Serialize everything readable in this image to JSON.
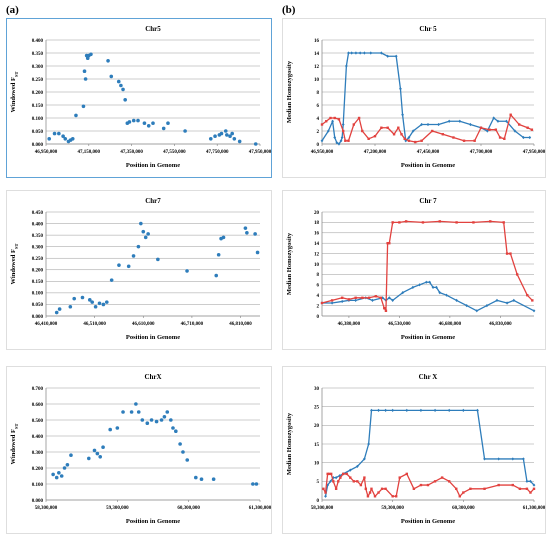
{
  "panels": {
    "left": "(a)",
    "right": "(b)"
  },
  "chart_data": [
    {
      "id": "a1",
      "type": "scatter",
      "title": "Chr5",
      "xlabel": "Position in Genome",
      "ylabel": "Windowed F",
      "ylabel_sub": "ST",
      "xlim": [
        46950000,
        47950000
      ],
      "xticks": [
        46950000,
        47150000,
        47350000,
        47550000,
        47750000,
        47950000
      ],
      "xtick_labels": [
        "46,950,000",
        "47,150,000",
        "47,350,000",
        "47,550,000",
        "47,750,000",
        "47,950,000"
      ],
      "ylim": [
        0,
        0.4
      ],
      "yticks": [
        0,
        0.05,
        0.1,
        0.15,
        0.2,
        0.25,
        0.3,
        0.35,
        0.4
      ],
      "ytick_labels": [
        "0.000",
        "0.050",
        "0.100",
        "0.150",
        "0.200",
        "0.250",
        "0.300",
        "0.350",
        "0.400"
      ],
      "grid": true,
      "frame_color": "#4f9ad3",
      "series": [
        {
          "color": "#2e7dbb",
          "x": [
            46965000,
            46990000,
            47010000,
            47030000,
            47040000,
            47055000,
            47065000,
            47075000,
            47090000,
            47125000,
            47130000,
            47135000,
            47140000,
            47145000,
            47150000,
            47160000,
            47240000,
            47255000,
            47290000,
            47300000,
            47310000,
            47320000,
            47330000,
            47340000,
            47360000,
            47380000,
            47410000,
            47430000,
            47450000,
            47500000,
            47520000,
            47600000,
            47720000,
            47740000,
            47760000,
            47770000,
            47790000,
            47795000,
            47810000,
            47820000,
            47830000,
            47855000,
            47930000
          ],
          "y": [
            0.02,
            0.04,
            0.04,
            0.03,
            0.02,
            0.01,
            0.015,
            0.02,
            0.11,
            0.145,
            0.28,
            0.25,
            0.34,
            0.33,
            0.34,
            0.345,
            0.32,
            0.26,
            0.24,
            0.225,
            0.21,
            0.17,
            0.08,
            0.085,
            0.09,
            0.09,
            0.08,
            0.07,
            0.08,
            0.06,
            0.08,
            0.05,
            0.02,
            0.03,
            0.035,
            0.04,
            0.05,
            0.035,
            0.03,
            0.04,
            0.02,
            0.01,
            0.0
          ]
        }
      ]
    },
    {
      "id": "b1",
      "type": "line",
      "title": "Chr 5",
      "xlabel": "Position in Genome",
      "ylabel": "Median Homozygosity",
      "xlim": [
        46950000,
        47950000
      ],
      "xticks": [
        46950000,
        47200000,
        47450000,
        47700000,
        47950000
      ],
      "xtick_labels": [
        "46,950,000",
        "47,200,000",
        "47,450,000",
        "47,700,000",
        "47,950,000"
      ],
      "ylim": [
        0,
        16
      ],
      "yticks": [
        0,
        2,
        4,
        6,
        8,
        10,
        12,
        14,
        16
      ],
      "ytick_labels": [
        "0",
        "2",
        "4",
        "6",
        "8",
        "10",
        "12",
        "14",
        "16"
      ],
      "grid": true,
      "series": [
        {
          "color": "#2e7dbb",
          "x": [
            46950000,
            46980000,
            47000000,
            47010000,
            47020000,
            47030000,
            47040000,
            47045000,
            47050000,
            47065000,
            47075000,
            47090000,
            47110000,
            47130000,
            47150000,
            47180000,
            47230000,
            47260000,
            47300000,
            47320000,
            47330000,
            47345000,
            47360000,
            47380000,
            47420000,
            47450000,
            47500000,
            47550000,
            47600000,
            47650000,
            47700000,
            47730000,
            47760000,
            47780000,
            47820000,
            47860000,
            47900000,
            47930000
          ],
          "y": [
            0.5,
            2,
            3.5,
            1,
            0.2,
            0,
            0.5,
            1,
            3,
            12,
            14,
            14,
            14,
            14,
            14,
            14,
            14,
            13.5,
            13.5,
            8.5,
            4.5,
            0.5,
            1,
            2,
            3,
            3,
            3,
            3.5,
            3.5,
            3,
            2.5,
            2,
            4,
            3.5,
            3.5,
            2,
            1,
            1
          ]
        },
        {
          "color": "#e2423f",
          "x": [
            46950000,
            46970000,
            46990000,
            47010000,
            47030000,
            47050000,
            47060000,
            47075000,
            47100000,
            47125000,
            47140000,
            47170000,
            47200000,
            47230000,
            47260000,
            47290000,
            47310000,
            47325000,
            47340000,
            47360000,
            47390000,
            47420000,
            47470000,
            47520000,
            47570000,
            47620000,
            47670000,
            47700000,
            47740000,
            47770000,
            47790000,
            47810000,
            47840000,
            47880000,
            47920000,
            47940000
          ],
          "y": [
            3,
            3.5,
            4,
            4,
            3.8,
            2,
            0.5,
            0.5,
            3,
            4,
            2,
            0.8,
            1.2,
            2.5,
            2.5,
            1.5,
            2.5,
            1.5,
            0.8,
            0.5,
            0.3,
            0.5,
            2,
            1.5,
            1,
            0.5,
            0.5,
            2.5,
            2.2,
            2.2,
            1,
            0.8,
            4.5,
            3,
            2.5,
            2.2
          ]
        }
      ]
    },
    {
      "id": "a2",
      "type": "scatter",
      "title": "Chr7",
      "xlabel": "Position in Genome",
      "ylabel": "Windowed F",
      "ylabel_sub": "ST",
      "xlim": [
        46410000,
        46850000
      ],
      "xticks": [
        46410000,
        46510000,
        46610000,
        46710000,
        46810000
      ],
      "xtick_labels": [
        "46,410,000",
        "46,510,000",
        "46,610,000",
        "46,710,000",
        "46,810,000"
      ],
      "ylim": [
        0,
        0.45
      ],
      "yticks": [
        0,
        0.05,
        0.1,
        0.15,
        0.2,
        0.25,
        0.3,
        0.35,
        0.4,
        0.45
      ],
      "ytick_labels": [
        "0.000",
        "0.050",
        "0.100",
        "0.150",
        "0.200",
        "0.250",
        "0.300",
        "0.350",
        "0.400",
        "0.450"
      ],
      "grid": true,
      "frame_color": "",
      "series": [
        {
          "color": "#2e7dbb",
          "x": [
            46432000,
            46438000,
            46460000,
            46468000,
            46485000,
            46500000,
            46505000,
            46512000,
            46520000,
            46528000,
            46535000,
            46545000,
            46560000,
            46580000,
            46590000,
            46600000,
            46605000,
            46610000,
            46615000,
            46620000,
            46640000,
            46700000,
            46760000,
            46765000,
            46770000,
            46775000,
            46820000,
            46823000,
            46840000,
            46845000
          ],
          "y": [
            0.015,
            0.03,
            0.04,
            0.075,
            0.08,
            0.07,
            0.06,
            0.04,
            0.055,
            0.05,
            0.06,
            0.155,
            0.22,
            0.215,
            0.26,
            0.3,
            0.4,
            0.365,
            0.34,
            0.355,
            0.245,
            0.195,
            0.175,
            0.265,
            0.335,
            0.34,
            0.38,
            0.36,
            0.355,
            0.275
          ]
        }
      ]
    },
    {
      "id": "b2",
      "type": "line",
      "title": "Chr 7",
      "xlabel": "Position in Genome",
      "ylabel": "Median Homozygosity",
      "xlim": [
        46300000,
        46930000
      ],
      "xticks": [
        46380000,
        46530000,
        46680000,
        46830000
      ],
      "xtick_labels": [
        "46,380,000",
        "46,530,000",
        "46,680,000",
        "46,830,000"
      ],
      "ylim": [
        0,
        20
      ],
      "yticks": [
        0,
        2,
        4,
        6,
        8,
        10,
        12,
        14,
        16,
        18,
        20
      ],
      "ytick_labels": [
        "0",
        "2",
        "4",
        "6",
        "8",
        "10",
        "12",
        "14",
        "16",
        "18",
        "20"
      ],
      "grid": true,
      "series": [
        {
          "color": "#2e7dbb",
          "x": [
            46300000,
            46330000,
            46360000,
            46380000,
            46400000,
            46430000,
            46450000,
            46480000,
            46490000,
            46500000,
            46510000,
            46540000,
            46570000,
            46590000,
            46610000,
            46620000,
            46630000,
            46640000,
            46650000,
            46670000,
            46700000,
            46730000,
            46760000,
            46790000,
            46820000,
            46850000,
            46870000,
            46930000
          ],
          "y": [
            2.5,
            2.5,
            2.8,
            3,
            3,
            3.5,
            3,
            3.5,
            3,
            3.5,
            3,
            4.5,
            5.5,
            6,
            6.5,
            6.5,
            5.5,
            5.5,
            4.5,
            4,
            3,
            2,
            1,
            2,
            3,
            2.5,
            3,
            1
          ]
        },
        {
          "color": "#e2423f",
          "x": [
            46300000,
            46330000,
            46360000,
            46380000,
            46400000,
            46420000,
            46440000,
            46460000,
            46475000,
            46485000,
            46490000,
            46495000,
            46500000,
            46510000,
            46530000,
            46550000,
            46600000,
            46650000,
            46700000,
            46750000,
            46800000,
            46840000,
            46850000,
            46860000,
            46880000,
            46910000,
            46925000
          ],
          "y": [
            2.5,
            3,
            3.5,
            3.2,
            3.5,
            3.5,
            3.5,
            3.8,
            3.5,
            1.5,
            1,
            14,
            14,
            18,
            18,
            18.2,
            18,
            18.2,
            18,
            18,
            18.2,
            18,
            12,
            12,
            8,
            4,
            3
          ]
        }
      ]
    },
    {
      "id": "a3",
      "type": "scatter",
      "title": "ChrX",
      "xlabel": "Position in Genome",
      "ylabel": "Windowed F",
      "ylabel_sub": "ST",
      "xlim": [
        58300000,
        61300000
      ],
      "xticks": [
        58300000,
        59300000,
        60300000,
        61300000
      ],
      "xtick_labels": [
        "58,300,000",
        "59,300,000",
        "60,300,000",
        "61,300,000"
      ],
      "ylim": [
        0,
        0.7
      ],
      "yticks": [
        0,
        0.1,
        0.2,
        0.3,
        0.4,
        0.5,
        0.6,
        0.7
      ],
      "ytick_labels": [
        "0.000",
        "0.100",
        "0.200",
        "0.300",
        "0.400",
        "0.500",
        "0.600",
        "0.700"
      ],
      "grid": true,
      "frame_color": "",
      "series": [
        {
          "color": "#2e7dbb",
          "x": [
            58400000,
            58450000,
            58480000,
            58520000,
            58560000,
            58600000,
            58650000,
            58900000,
            58980000,
            59020000,
            59060000,
            59100000,
            59200000,
            59300000,
            59380000,
            59500000,
            59560000,
            59600000,
            59650000,
            59720000,
            59780000,
            59850000,
            59920000,
            59960000,
            60000000,
            60050000,
            60080000,
            60120000,
            60180000,
            60220000,
            60280000,
            60400000,
            60480000,
            60650000,
            61200000,
            61250000
          ],
          "y": [
            0.16,
            0.14,
            0.17,
            0.15,
            0.2,
            0.22,
            0.28,
            0.26,
            0.31,
            0.29,
            0.27,
            0.33,
            0.44,
            0.45,
            0.55,
            0.55,
            0.6,
            0.55,
            0.5,
            0.48,
            0.5,
            0.49,
            0.5,
            0.52,
            0.55,
            0.5,
            0.45,
            0.43,
            0.35,
            0.3,
            0.25,
            0.14,
            0.13,
            0.13,
            0.1,
            0.1
          ]
        }
      ]
    },
    {
      "id": "b3",
      "type": "line",
      "title": "Chr X",
      "xlabel": "Position in Genome",
      "ylabel": "Median Homozygosity",
      "xlim": [
        58300000,
        61300000
      ],
      "xticks": [
        58300000,
        59300000,
        60300000,
        61300000
      ],
      "xtick_labels": [
        "58,300,000",
        "59,300,000",
        "60,300,000",
        "61,300,000"
      ],
      "ylim": [
        0,
        30
      ],
      "yticks": [
        0,
        5,
        10,
        15,
        20,
        25,
        30
      ],
      "ytick_labels": [
        "0",
        "5",
        "10",
        "15",
        "20",
        "25",
        "30"
      ],
      "grid": true,
      "series": [
        {
          "color": "#2e7dbb",
          "x": [
            58350000,
            58380000,
            58420000,
            58460000,
            58500000,
            58550000,
            58600000,
            58700000,
            58800000,
            58900000,
            58960000,
            59000000,
            59100000,
            59200000,
            59300000,
            59500000,
            59700000,
            59900000,
            60100000,
            60300000,
            60500000,
            60600000,
            60800000,
            61000000,
            61150000,
            61200000,
            61250000,
            61300000
          ],
          "y": [
            1,
            4,
            5,
            6,
            6,
            6.5,
            7,
            8,
            9,
            11,
            15,
            24,
            24,
            24,
            24,
            24,
            24,
            24,
            24,
            24,
            24,
            11,
            11,
            11,
            11,
            5,
            5,
            4
          ]
        },
        {
          "color": "#e2423f",
          "x": [
            58320000,
            58350000,
            58380000,
            58400000,
            58430000,
            58460000,
            58500000,
            58530000,
            58560000,
            58600000,
            58650000,
            58700000,
            58750000,
            58800000,
            58850000,
            58900000,
            58920000,
            58950000,
            58980000,
            59000000,
            59050000,
            59100000,
            59150000,
            59200000,
            59300000,
            59350000,
            59400000,
            59500000,
            59600000,
            59700000,
            59800000,
            59900000,
            60000000,
            60100000,
            60200000,
            60250000,
            60300000,
            60400000,
            60600000,
            60800000,
            61000000,
            61100000,
            61200000,
            61250000,
            61300000
          ],
          "y": [
            3,
            2,
            7,
            7,
            7,
            5,
            3,
            5,
            6,
            7,
            7,
            6,
            5,
            5,
            4,
            6,
            3,
            1,
            2,
            3,
            1,
            2,
            3,
            3,
            1,
            1,
            6,
            7,
            3,
            4,
            4,
            5,
            6,
            5,
            3,
            1,
            2,
            3,
            3,
            4,
            4,
            3,
            3,
            2,
            3
          ]
        }
      ]
    }
  ]
}
